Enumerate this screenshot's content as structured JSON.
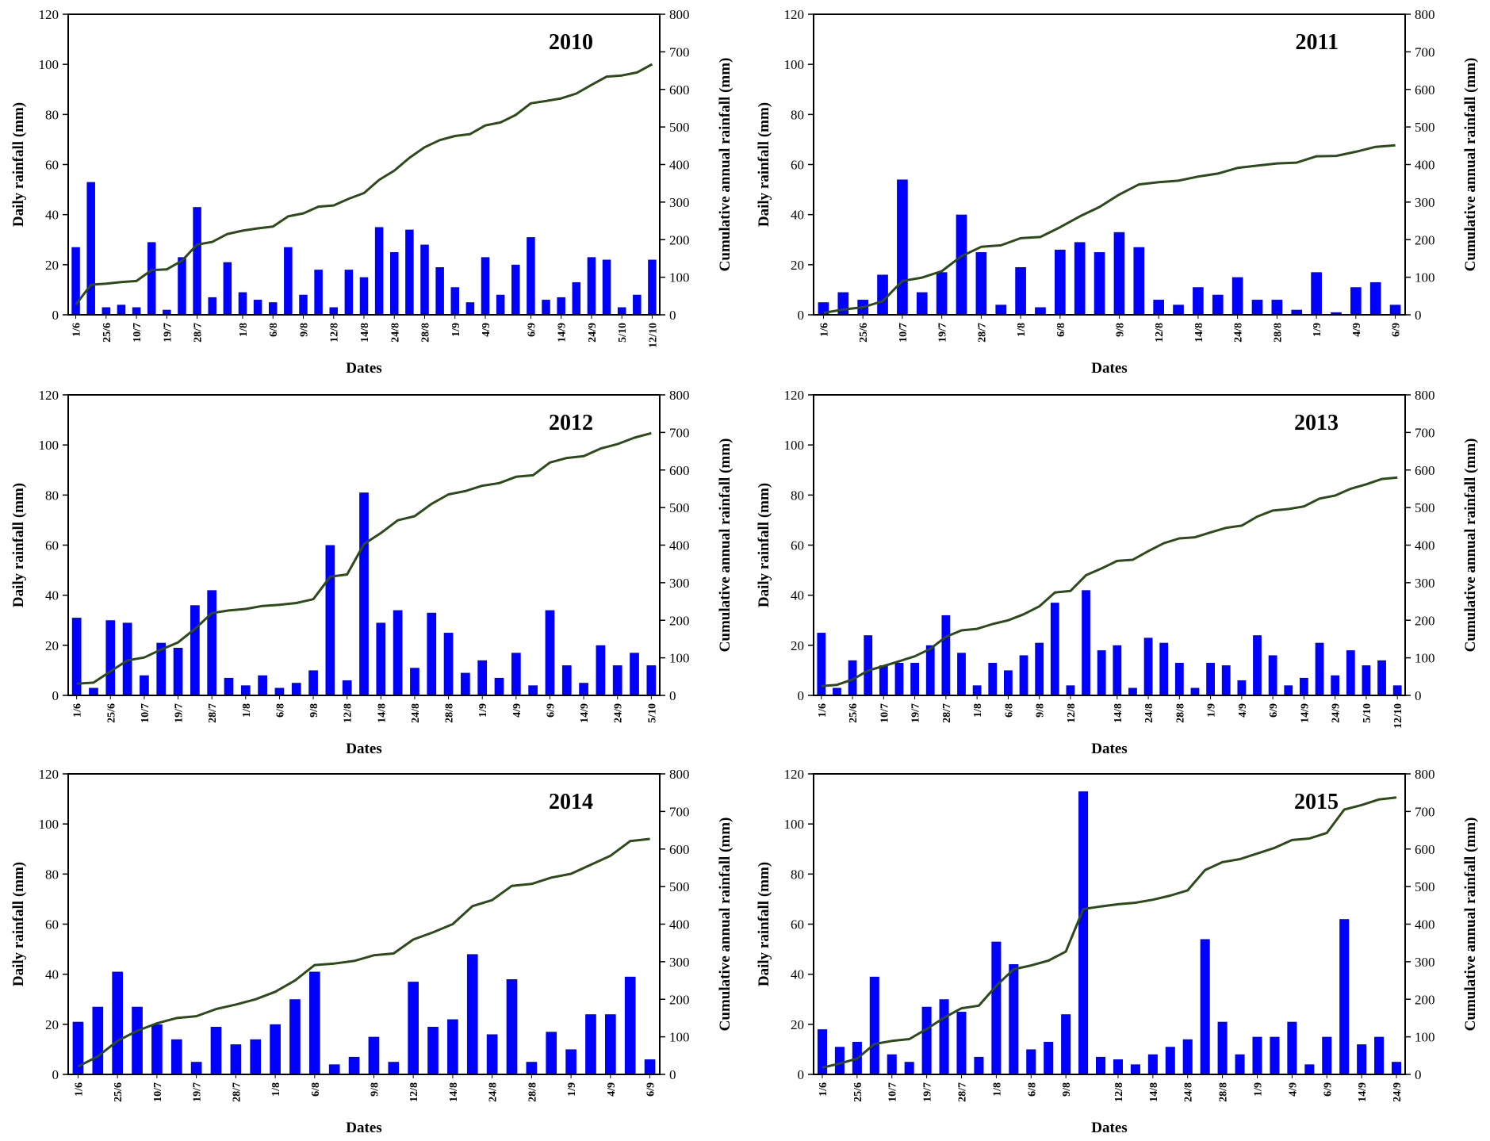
{
  "chart_data": [
    {
      "type": "bar",
      "title": "2010",
      "xlabel": "Dates",
      "ylabel": "Daily rainfall  (mm)",
      "y2label": "Cumulative  annual  rainfall  (mm)",
      "ylim": [
        0,
        120
      ],
      "y2lim": [
        0,
        800
      ],
      "yticks": [
        "0",
        "20",
        "40",
        "60",
        "80",
        "100",
        "120"
      ],
      "y2ticks": [
        "0",
        "100",
        "200",
        "300",
        "400",
        "500",
        "600",
        "700",
        "800"
      ],
      "xtick_labels": [
        "1/6",
        "25/6",
        "10/7",
        "19/7",
        "28/7",
        "1/8",
        "6/8",
        "9/8",
        "12/8",
        "14/8",
        "24/8",
        "28/8",
        "1/9",
        "4/9",
        "6/9",
        "14/9",
        "24/9",
        "5/10",
        "12/10"
      ],
      "series": [
        {
          "name": "Daily rainfall",
          "kind": "bar",
          "color": "#0000ff",
          "values": [
            27,
            53,
            3,
            4,
            3,
            29,
            2,
            23,
            43,
            7,
            21,
            9,
            6,
            5,
            27,
            8,
            18,
            3,
            18,
            15,
            35,
            25,
            34,
            28,
            19,
            11,
            5,
            23,
            8,
            20,
            31,
            6,
            7,
            13,
            23,
            22,
            3,
            8,
            22
          ]
        },
        {
          "name": "Cumulative annual rainfall",
          "kind": "line",
          "color": "#2d4a1a",
          "values": [
            27,
            80,
            83,
            87,
            90,
            119,
            121,
            144,
            187,
            194,
            215,
            224,
            230,
            235,
            262,
            270,
            288,
            291,
            309,
            324,
            359,
            384,
            418,
            446,
            465,
            476,
            481,
            504,
            512,
            532,
            563,
            569,
            576,
            589,
            612,
            634,
            637,
            645,
            667
          ]
        }
      ]
    },
    {
      "type": "bar",
      "title": "2011",
      "xlabel": "Dates",
      "ylabel": "Daily rainfall  (mm)",
      "y2label": "Cumulative  annual  rainfall  (mm)",
      "ylim": [
        0,
        120
      ],
      "y2lim": [
        0,
        800
      ],
      "yticks": [
        "0",
        "20",
        "40",
        "60",
        "80",
        "100",
        "120"
      ],
      "y2ticks": [
        "0",
        "100",
        "200",
        "300",
        "400",
        "500",
        "600",
        "700",
        "800"
      ],
      "xtick_labels": [
        "1/6",
        "25/6",
        "10/7",
        "19/7",
        "28/7",
        "1/8",
        "6/8",
        "9/8",
        "12/8",
        "14/8",
        "24/8",
        "28/8",
        "1/9",
        "4/9",
        "6/9"
      ],
      "series": [
        {
          "name": "Daily rainfall",
          "kind": "bar",
          "color": "#0000ff",
          "values": [
            5,
            9,
            6,
            16,
            54,
            9,
            17,
            40,
            25,
            4,
            19,
            3,
            26,
            29,
            25,
            33,
            27,
            6,
            4,
            11,
            8,
            15,
            6,
            6,
            2,
            17,
            1,
            11,
            13,
            4
          ]
        },
        {
          "name": "Cumulative annual rainfall",
          "kind": "line",
          "color": "#2d4a1a",
          "values": [
            5,
            14,
            20,
            36,
            90,
            99,
            116,
            156,
            181,
            185,
            204,
            207,
            233,
            262,
            287,
            320,
            347,
            353,
            357,
            368,
            376,
            391,
            397,
            403,
            405,
            422,
            423,
            434,
            447,
            451
          ]
        }
      ]
    },
    {
      "type": "bar",
      "title": "2012",
      "xlabel": "Dates",
      "ylabel": "Daily rainfall  (mm)",
      "y2label": "Cumulative  annual  rainfall  (mm)",
      "ylim": [
        0,
        120
      ],
      "y2lim": [
        0,
        800
      ],
      "yticks": [
        "0",
        "20",
        "40",
        "60",
        "80",
        "100",
        "120"
      ],
      "y2ticks": [
        "0",
        "100",
        "200",
        "300",
        "400",
        "500",
        "600",
        "700",
        "800"
      ],
      "xtick_labels": [
        "1/6",
        "25/6",
        "10/7",
        "19/7",
        "28/7",
        "1/8",
        "6/8",
        "9/8",
        "12/8",
        "14/8",
        "24/8",
        "28/8",
        "1/9",
        "4/9",
        "6/9",
        "14/9",
        "24/9",
        "5/10"
      ],
      "series": [
        {
          "name": "Daily rainfall",
          "kind": "bar",
          "color": "#0000ff",
          "values": [
            31,
            3,
            30,
            29,
            8,
            21,
            19,
            36,
            42,
            7,
            4,
            8,
            3,
            5,
            10,
            60,
            6,
            81,
            29,
            34,
            11,
            33,
            25,
            9,
            14,
            7,
            17,
            4,
            34,
            12,
            5,
            20,
            12,
            17,
            12
          ]
        },
        {
          "name": "Cumulative annual rainfall",
          "kind": "line",
          "color": "#2d4a1a",
          "values": [
            31,
            34,
            64,
            93,
            101,
            122,
            141,
            177,
            219,
            226,
            230,
            238,
            241,
            246,
            256,
            316,
            322,
            403,
            432,
            466,
            477,
            510,
            535,
            544,
            558,
            565,
            582,
            586,
            620,
            632,
            637,
            657,
            669,
            686,
            698
          ]
        }
      ]
    },
    {
      "type": "bar",
      "title": "2013",
      "xlabel": "Dates",
      "ylabel": "Daily rainfall  (mm)",
      "y2label": "Cumulative  annual  rainfall  (mm)",
      "ylim": [
        0,
        120
      ],
      "y2lim": [
        0,
        800
      ],
      "yticks": [
        "0",
        "20",
        "40",
        "60",
        "80",
        "100",
        "120"
      ],
      "y2ticks": [
        "0",
        "100",
        "200",
        "300",
        "400",
        "500",
        "600",
        "700",
        "800"
      ],
      "xtick_labels": [
        "1/6",
        "25/6",
        "10/7",
        "19/7",
        "28/7",
        "1/8",
        "6/8",
        "9/8",
        "12/8",
        "14/8",
        "24/8",
        "28/8",
        "1/9",
        "4/9",
        "6/9",
        "14/9",
        "24/9",
        "5/10",
        "12/10"
      ],
      "series": [
        {
          "name": "Daily rainfall",
          "kind": "bar",
          "color": "#0000ff",
          "values": [
            25,
            3,
            14,
            24,
            12,
            13,
            13,
            20,
            32,
            17,
            4,
            13,
            10,
            16,
            21,
            37,
            4,
            42,
            18,
            20,
            3,
            23,
            21,
            13,
            3,
            13,
            12,
            6,
            24,
            16,
            4,
            7,
            21,
            8,
            18,
            12,
            14,
            4
          ]
        },
        {
          "name": "Cumulative annual rainfall",
          "kind": "line",
          "color": "#2d4a1a",
          "values": [
            25,
            28,
            42,
            66,
            78,
            91,
            104,
            124,
            156,
            173,
            177,
            190,
            200,
            216,
            237,
            274,
            278,
            320,
            338,
            358,
            361,
            384,
            405,
            418,
            421,
            434,
            446,
            452,
            476,
            492,
            496,
            503,
            524,
            532,
            550,
            562,
            576,
            580
          ]
        }
      ]
    },
    {
      "type": "bar",
      "title": "2014",
      "xlabel": "Dates",
      "ylabel": "Daily rainfall  (mm)",
      "y2label": "Cumulative  annual  rainfall  (mm)",
      "ylim": [
        0,
        120
      ],
      "y2lim": [
        0,
        800
      ],
      "yticks": [
        "0",
        "20",
        "40",
        "60",
        "80",
        "100",
        "120"
      ],
      "y2ticks": [
        "0",
        "100",
        "200",
        "300",
        "400",
        "500",
        "600",
        "700",
        "800"
      ],
      "xtick_labels": [
        "1/6",
        "25/6",
        "10/7",
        "19/7",
        "28/7",
        "1/8",
        "6/8",
        "9/8",
        "12/8",
        "14/8",
        "24/8",
        "28/8",
        "1/9",
        "4/9",
        "6/9"
      ],
      "series": [
        {
          "name": "Daily rainfall",
          "kind": "bar",
          "color": "#0000ff",
          "values": [
            21,
            27,
            41,
            27,
            20,
            14,
            5,
            19,
            12,
            14,
            20,
            30,
            41,
            4,
            7,
            15,
            5,
            37,
            19,
            22,
            48,
            16,
            38,
            5,
            17,
            10,
            24,
            24,
            39,
            6
          ]
        },
        {
          "name": "Cumulative annual rainfall",
          "kind": "line",
          "color": "#2d4a1a",
          "values": [
            21,
            48,
            89,
            116,
            136,
            150,
            155,
            174,
            186,
            200,
            220,
            250,
            291,
            295,
            302,
            317,
            322,
            359,
            378,
            400,
            448,
            464,
            502,
            507,
            524,
            534,
            558,
            582,
            621,
            627
          ]
        }
      ]
    },
    {
      "type": "bar",
      "title": "2015",
      "xlabel": "Dates",
      "ylabel": "Daily rainfall  (mm)",
      "y2label": "Cumulative  annual  rainfall  (mm)",
      "ylim": [
        0,
        120
      ],
      "y2lim": [
        0,
        800
      ],
      "yticks": [
        "0",
        "20",
        "40",
        "60",
        "80",
        "100",
        "120"
      ],
      "y2ticks": [
        "0",
        "100",
        "200",
        "300",
        "400",
        "500",
        "600",
        "700",
        "800"
      ],
      "xtick_labels": [
        "1/6",
        "25/6",
        "10/7",
        "19/7",
        "28/7",
        "1/8",
        "6/8",
        "9/8",
        "12/8",
        "14/8",
        "24/8",
        "28/8",
        "1/9",
        "4/9",
        "6/9",
        "14/9",
        "24/9"
      ],
      "series": [
        {
          "name": "Daily rainfall",
          "kind": "bar",
          "color": "#0000ff",
          "values": [
            18,
            11,
            13,
            39,
            8,
            5,
            27,
            30,
            25,
            7,
            53,
            44,
            10,
            13,
            24,
            113,
            7,
            6,
            4,
            8,
            11,
            14,
            54,
            21,
            8,
            15,
            15,
            21,
            4,
            15,
            62,
            12,
            15,
            5
          ]
        },
        {
          "name": "Cumulative annual rainfall",
          "kind": "line",
          "color": "#2d4a1a",
          "values": [
            18,
            29,
            42,
            81,
            89,
            94,
            121,
            151,
            176,
            183,
            236,
            280,
            290,
            303,
            327,
            440,
            447,
            453,
            457,
            465,
            476,
            490,
            544,
            565,
            573,
            588,
            603,
            624,
            628,
            643,
            705,
            717,
            732,
            737
          ]
        }
      ]
    }
  ]
}
